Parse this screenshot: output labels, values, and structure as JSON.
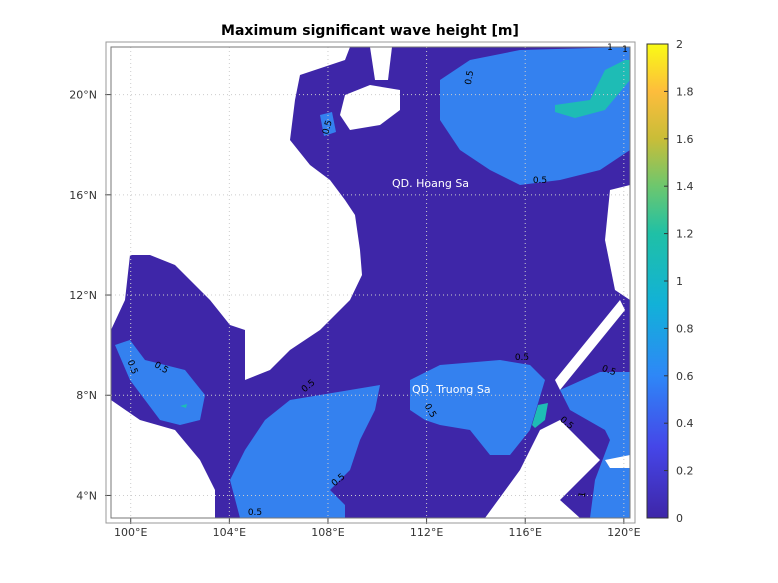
{
  "chart_data": {
    "type": "heatmap",
    "title": "Maximum significant wave height [m]",
    "xlabel": "",
    "ylabel": "",
    "xlim": [
      99.2,
      120.25
    ],
    "ylim": [
      3.1,
      21.9
    ],
    "xticks": [
      100,
      104,
      108,
      112,
      116,
      120
    ],
    "xtick_labels": [
      "100°E",
      "104°E",
      "108°E",
      "112°E",
      "116°E",
      "120°E"
    ],
    "yticks": [
      4,
      8,
      12,
      16,
      20
    ],
    "ytick_labels": [
      "4°N",
      "8°N",
      "12°N",
      "16°N",
      "20°N"
    ],
    "grid": true,
    "colorbar": {
      "range": [
        0,
        2
      ],
      "ticks": [
        "0",
        "0.2",
        "0.4",
        "0.6",
        "0.8",
        "1",
        "1.2",
        "1.4",
        "1.6",
        "1.8",
        "2"
      ],
      "colormap": "parula",
      "placement": "right"
    },
    "contour_levels": [
      0.5,
      1
    ],
    "contour_labels": [
      "0.5",
      "0.5",
      "0.5",
      "0.5",
      "0.5",
      "0.5",
      "0.5",
      "0.5",
      "0.5",
      "0.5",
      "0.5",
      "0.5",
      "1",
      "1",
      "1"
    ],
    "annotations": [
      "QD. Hoang Sa",
      "QD. Truong Sa"
    ],
    "level_colors": {
      "below_0_5": "#3e26a8",
      "0_5_to_1": "#3481ef",
      "above_1": "#1ebcb5",
      "land": "#ffffff"
    }
  }
}
